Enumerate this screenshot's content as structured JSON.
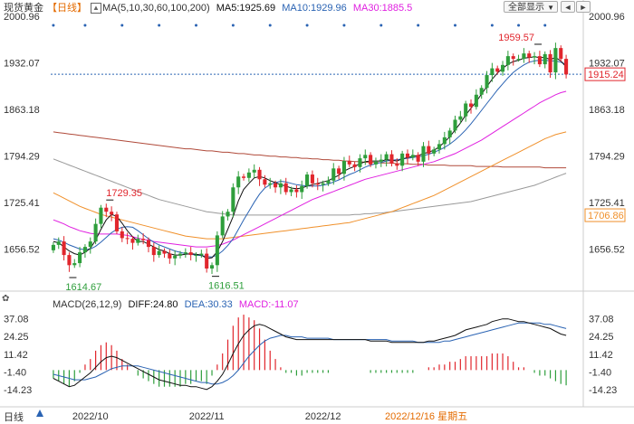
{
  "header": {
    "title": "现货黄金",
    "period": "【日线】",
    "ma_params": "MA(5,10,30,60,100,200)",
    "ma5": "MA5:1925.69",
    "ma10": "MA10:1929.96",
    "ma30": "MA30:1885.5",
    "all_button": "全部显示",
    "nav_left": "◄",
    "nav_right": "►"
  },
  "colors": {
    "up": "#2e9e3b",
    "down": "#e1262d",
    "ma5": "#111111",
    "ma10": "#2a63b3",
    "ma30": "#e020e0",
    "ma60": "#f0902a",
    "ma100": "#999999",
    "ma200": "#b04a3a",
    "dif": "#111111",
    "dea": "#2a63b3",
    "price_tag": "#e1262d"
  },
  "chart_data": [
    {
      "type": "candlestick",
      "y_ticks": [
        "2000.96",
        "1932.07",
        "1863.18",
        "1794.29",
        "1725.41",
        "1656.52"
      ],
      "ylim": [
        1600,
        2000.96
      ],
      "x_ticks": [
        "2022/10",
        "2022/11",
        "2022/12"
      ],
      "x_tick_index": [
        7,
        29,
        51
      ],
      "annotations": [
        {
          "text": "1729.35",
          "index": 10,
          "value": 1729.35,
          "kind": "high"
        },
        {
          "text": "1614.67",
          "index": 3,
          "value": 1614.67,
          "kind": "low"
        },
        {
          "text": "1616.51",
          "index": 30,
          "value": 1616.51,
          "kind": "low"
        },
        {
          "text": "1959.57",
          "index": 91,
          "value": 1959.57,
          "kind": "high"
        }
      ],
      "price_tags": [
        {
          "text": "1915.24",
          "value": 1915.24,
          "color": "#e1262d"
        },
        {
          "text": "1706.86",
          "value": 1706.86,
          "color": "#f0902a"
        }
      ],
      "dashed_level": 1915.24,
      "close": [
        1663,
        1668,
        1648,
        1633,
        1636,
        1652,
        1660,
        1668,
        1694,
        1718,
        1712,
        1708,
        1683,
        1673,
        1672,
        1666,
        1672,
        1670,
        1660,
        1648,
        1654,
        1650,
        1643,
        1647,
        1650,
        1652,
        1648,
        1648,
        1650,
        1628,
        1633,
        1677,
        1705,
        1712,
        1748,
        1764,
        1762,
        1770,
        1774,
        1760,
        1752,
        1754,
        1748,
        1754,
        1741,
        1745,
        1741,
        1750,
        1767,
        1754,
        1752,
        1754,
        1758,
        1776,
        1768,
        1787,
        1782,
        1778,
        1791,
        1796,
        1782,
        1786,
        1789,
        1797,
        1783,
        1780,
        1798,
        1792,
        1796,
        1786,
        1809,
        1798,
        1804,
        1812,
        1822,
        1832,
        1848,
        1853,
        1872,
        1867,
        1885,
        1895,
        1914,
        1924,
        1919,
        1929,
        1942,
        1938,
        1938,
        1946,
        1940,
        1942,
        1930,
        1945,
        1918,
        1954,
        1938,
        1915
      ],
      "open": [
        1655,
        1663,
        1668,
        1648,
        1633,
        1636,
        1652,
        1660,
        1668,
        1694,
        1718,
        1712,
        1708,
        1683,
        1673,
        1672,
        1666,
        1672,
        1670,
        1660,
        1648,
        1654,
        1650,
        1643,
        1647,
        1650,
        1652,
        1648,
        1648,
        1650,
        1628,
        1633,
        1677,
        1705,
        1712,
        1748,
        1764,
        1762,
        1770,
        1774,
        1760,
        1752,
        1754,
        1748,
        1754,
        1741,
        1745,
        1741,
        1750,
        1767,
        1754,
        1752,
        1754,
        1758,
        1776,
        1768,
        1787,
        1782,
        1778,
        1791,
        1796,
        1782,
        1786,
        1789,
        1797,
        1783,
        1780,
        1798,
        1792,
        1796,
        1786,
        1809,
        1798,
        1804,
        1812,
        1822,
        1832,
        1848,
        1853,
        1872,
        1867,
        1885,
        1895,
        1914,
        1924,
        1919,
        1929,
        1942,
        1938,
        1938,
        1946,
        1940,
        1942,
        1930,
        1945,
        1918,
        1954,
        1938
      ],
      "ma5": [
        1668,
        1666,
        1660,
        1654,
        1650,
        1648,
        1652,
        1658,
        1670,
        1686,
        1700,
        1708,
        1705,
        1695,
        1684,
        1675,
        1668,
        1668,
        1664,
        1660,
        1656,
        1654,
        1650,
        1648,
        1648,
        1649,
        1650,
        1649,
        1648,
        1643,
        1644,
        1653,
        1668,
        1686,
        1705,
        1728,
        1745,
        1754,
        1762,
        1764,
        1762,
        1758,
        1755,
        1752,
        1750,
        1747,
        1746,
        1747,
        1750,
        1752,
        1754,
        1756,
        1758,
        1762,
        1766,
        1772,
        1776,
        1779,
        1783,
        1786,
        1787,
        1787,
        1787,
        1789,
        1788,
        1787,
        1790,
        1792,
        1794,
        1795,
        1798,
        1800,
        1803,
        1808,
        1815,
        1823,
        1833,
        1843,
        1855,
        1865,
        1875,
        1886,
        1897,
        1908,
        1917,
        1924,
        1930,
        1934,
        1936,
        1939,
        1940,
        1941,
        1940,
        1940,
        1937,
        1940,
        1935,
        1926
      ],
      "ma10": [
        1672,
        1670,
        1667,
        1663,
        1660,
        1657,
        1656,
        1657,
        1661,
        1667,
        1674,
        1681,
        1686,
        1689,
        1690,
        1689,
        1684,
        1678,
        1672,
        1667,
        1663,
        1660,
        1657,
        1654,
        1652,
        1650,
        1649,
        1648,
        1647,
        1646,
        1645,
        1648,
        1654,
        1662,
        1672,
        1686,
        1700,
        1713,
        1726,
        1738,
        1747,
        1752,
        1755,
        1757,
        1756,
        1754,
        1752,
        1751,
        1750,
        1750,
        1750,
        1751,
        1753,
        1756,
        1759,
        1763,
        1767,
        1770,
        1774,
        1778,
        1781,
        1783,
        1785,
        1787,
        1788,
        1789,
        1790,
        1791,
        1792,
        1793,
        1795,
        1797,
        1800,
        1803,
        1807,
        1812,
        1818,
        1825,
        1833,
        1842,
        1852,
        1862,
        1872,
        1882,
        1892,
        1901,
        1910,
        1918,
        1924,
        1929,
        1933,
        1935,
        1936,
        1936,
        1935,
        1935,
        1933,
        1930
      ],
      "ma30": [
        1700,
        1697,
        1694,
        1690,
        1687,
        1684,
        1682,
        1680,
        1679,
        1679,
        1679,
        1679,
        1679,
        1678,
        1677,
        1675,
        1673,
        1671,
        1670,
        1668,
        1667,
        1666,
        1665,
        1664,
        1663,
        1662,
        1661,
        1660,
        1660,
        1660,
        1661,
        1662,
        1664,
        1667,
        1670,
        1674,
        1678,
        1682,
        1686,
        1690,
        1694,
        1698,
        1702,
        1706,
        1710,
        1714,
        1718,
        1722,
        1726,
        1730,
        1733,
        1736,
        1739,
        1742,
        1745,
        1748,
        1751,
        1754,
        1757,
        1760,
        1762,
        1764,
        1766,
        1768,
        1770,
        1772,
        1774,
        1776,
        1778,
        1780,
        1782,
        1784,
        1786,
        1789,
        1792,
        1795,
        1798,
        1802,
        1806,
        1810,
        1814,
        1818,
        1823,
        1828,
        1833,
        1838,
        1843,
        1848,
        1853,
        1858,
        1863,
        1868,
        1873,
        1877,
        1881,
        1885,
        1888,
        1890
      ],
      "ma60": [
        1740,
        1736,
        1732,
        1728,
        1724,
        1720,
        1717,
        1714,
        1711,
        1708,
        1706,
        1704,
        1702,
        1700,
        1698,
        1696,
        1694,
        1692,
        1690,
        1688,
        1686,
        1684,
        1682,
        1680,
        1678,
        1676,
        1675,
        1674,
        1673,
        1672,
        1672,
        1672,
        1672,
        1673,
        1674,
        1675,
        1676,
        1677,
        1678,
        1679,
        1680,
        1681,
        1682,
        1683,
        1684,
        1685,
        1686,
        1687,
        1688,
        1689,
        1690,
        1691,
        1692,
        1693,
        1694,
        1695,
        1696,
        1698,
        1700,
        1702,
        1704,
        1706,
        1708,
        1710,
        1712,
        1715,
        1718,
        1721,
        1724,
        1727,
        1730,
        1733,
        1736,
        1740,
        1744,
        1748,
        1752,
        1756,
        1760,
        1764,
        1768,
        1772,
        1776,
        1780,
        1784,
        1788,
        1792,
        1796,
        1800,
        1804,
        1808,
        1812,
        1816,
        1820,
        1823,
        1826,
        1828,
        1830
      ],
      "ma100": [
        1790,
        1787,
        1784,
        1781,
        1778,
        1775,
        1772,
        1769,
        1766,
        1763,
        1760,
        1757,
        1754,
        1751,
        1748,
        1745,
        1742,
        1739,
        1736,
        1733,
        1730,
        1728,
        1726,
        1724,
        1722,
        1720,
        1718,
        1716,
        1714,
        1712,
        1711,
        1710,
        1709,
        1708,
        1707,
        1707,
        1707,
        1707,
        1707,
        1707,
        1707,
        1707,
        1707,
        1707,
        1707,
        1707,
        1707,
        1707,
        1707,
        1707,
        1707,
        1707,
        1707,
        1707,
        1707,
        1707,
        1707,
        1708,
        1708,
        1709,
        1709,
        1710,
        1710,
        1711,
        1712,
        1713,
        1714,
        1715,
        1716,
        1717,
        1718,
        1719,
        1720,
        1721,
        1722,
        1723,
        1724,
        1725,
        1726,
        1727,
        1729,
        1731,
        1733,
        1735,
        1737,
        1739,
        1741,
        1743,
        1745,
        1747,
        1749,
        1751,
        1754,
        1757,
        1760,
        1763,
        1766,
        1769
      ],
      "ma200": [
        1830,
        1829,
        1828,
        1827,
        1826,
        1825,
        1824,
        1823,
        1822,
        1821,
        1820,
        1819,
        1818,
        1817,
        1816,
        1815,
        1814,
        1813,
        1812,
        1811,
        1810,
        1809,
        1808,
        1807,
        1806,
        1805,
        1805,
        1804,
        1803,
        1802,
        1802,
        1801,
        1800,
        1800,
        1799,
        1798,
        1798,
        1797,
        1796,
        1796,
        1795,
        1794,
        1794,
        1793,
        1793,
        1792,
        1792,
        1791,
        1791,
        1790,
        1790,
        1789,
        1789,
        1788,
        1788,
        1787,
        1787,
        1786,
        1786,
        1785,
        1785,
        1785,
        1784,
        1784,
        1784,
        1783,
        1783,
        1783,
        1782,
        1782,
        1782,
        1781,
        1781,
        1781,
        1781,
        1780,
        1780,
        1780,
        1780,
        1780,
        1779,
        1779,
        1779,
        1779,
        1779,
        1778,
        1778,
        1778,
        1778,
        1778,
        1778,
        1778,
        1778,
        1777,
        1777,
        1777,
        1777,
        1777
      ]
    },
    {
      "type": "macd",
      "params": "MACD(26,12,9)",
      "dif_label": "DIFF:24.80",
      "dea_label": "DEA:30.33",
      "macd_label": "MACD:-11.07",
      "y_ticks": [
        "37.08",
        "24.25",
        "11.42",
        "-1.40",
        "-14.23"
      ],
      "ylim": [
        -20,
        42
      ],
      "dif": [
        -6,
        -8,
        -10,
        -12,
        -11,
        -8,
        -5,
        -2,
        2,
        6,
        9,
        10,
        9,
        7,
        5,
        3,
        1,
        -1,
        -3,
        -5,
        -7,
        -8,
        -9,
        -10,
        -11,
        -11,
        -12,
        -12,
        -13,
        -14,
        -12,
        -8,
        -3,
        4,
        12,
        19,
        25,
        29,
        32,
        33,
        32,
        30,
        28,
        26,
        24,
        23,
        22,
        22,
        22,
        22,
        22,
        22,
        22,
        22,
        22,
        22,
        22,
        22,
        22,
        22,
        21,
        21,
        21,
        21,
        20,
        20,
        20,
        20,
        20,
        20,
        20,
        21,
        21,
        22,
        23,
        24,
        25,
        27,
        29,
        30,
        31,
        32,
        33,
        35,
        36,
        37,
        37,
        36,
        35,
        35,
        34,
        33,
        32,
        31,
        30,
        28,
        26,
        25
      ],
      "dea": [
        -3,
        -4,
        -5,
        -6,
        -7,
        -7,
        -7,
        -6,
        -5,
        -3,
        -1,
        1,
        2,
        3,
        3,
        3,
        3,
        2,
        1,
        0,
        -1,
        -2,
        -3,
        -4,
        -5,
        -6,
        -7,
        -8,
        -9,
        -9,
        -10,
        -10,
        -9,
        -7,
        -4,
        0,
        5,
        10,
        14,
        18,
        21,
        23,
        24,
        25,
        25,
        24,
        24,
        24,
        23,
        23,
        23,
        23,
        23,
        22,
        22,
        22,
        22,
        22,
        22,
        22,
        22,
        22,
        22,
        22,
        21,
        21,
        21,
        21,
        21,
        20,
        20,
        20,
        20,
        20,
        21,
        21,
        22,
        23,
        24,
        25,
        26,
        27,
        28,
        29,
        30,
        31,
        32,
        33,
        34,
        34,
        34,
        34,
        34,
        33,
        33,
        32,
        31,
        30
      ],
      "hist": [
        -6,
        -8,
        -10,
        -12,
        -8,
        -2,
        4,
        8,
        14,
        18,
        20,
        18,
        14,
        8,
        4,
        0,
        -4,
        -6,
        -8,
        -10,
        -12,
        -12,
        -12,
        -12,
        -12,
        -10,
        -10,
        -8,
        -8,
        -10,
        -4,
        4,
        12,
        22,
        32,
        38,
        40,
        38,
        36,
        30,
        22,
        14,
        8,
        2,
        -2,
        -2,
        -4,
        -4,
        -2,
        -2,
        -2,
        -2,
        -2,
        0,
        0,
        0,
        0,
        0,
        0,
        0,
        -2,
        -2,
        -2,
        -2,
        -2,
        -2,
        -2,
        -2,
        -2,
        0,
        0,
        2,
        2,
        4,
        4,
        6,
        6,
        8,
        10,
        10,
        10,
        10,
        10,
        12,
        12,
        12,
        10,
        6,
        2,
        2,
        0,
        -2,
        -4,
        -4,
        -6,
        -8,
        -10,
        -11
      ]
    }
  ],
  "footer": {
    "range_button": "日线",
    "date_label": "2022/12/16 星期五"
  }
}
